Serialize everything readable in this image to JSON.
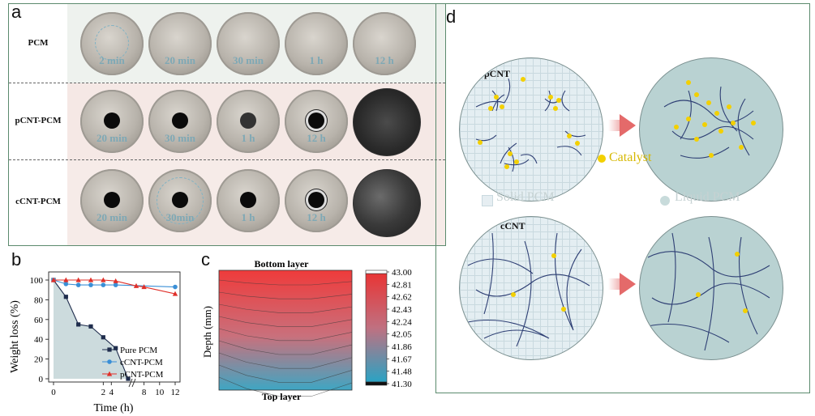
{
  "panel_labels": {
    "a": "a",
    "b": "b",
    "c": "c",
    "d": "d"
  },
  "panel_a": {
    "rows": [
      {
        "label": "PCM",
        "times": [
          "2 min",
          "20 min",
          "30 min",
          "1 h",
          "12 h"
        ]
      },
      {
        "label": "pCNT-PCM",
        "times": [
          "20 min",
          "30 min",
          "1 h",
          "12 h"
        ]
      },
      {
        "label": "cCNT-PCM",
        "times": [
          "20 min",
          "30min",
          "1 h",
          "12 h"
        ]
      }
    ]
  },
  "panel_d": {
    "pcnt_label": "pCNT",
    "ccnt_label": "cCNT",
    "catalyst_label": "Catalyst",
    "solid_label": "Solid PCM",
    "liquid_label": "Liquid PCM"
  },
  "chart_data": [
    {
      "type": "line",
      "xlabel": "Time (h)",
      "ylabel": "Weight loss (%)",
      "ylim": [
        0,
        100
      ],
      "yticks": [
        "0",
        "20",
        "40",
        "60",
        "80",
        "100"
      ],
      "xticks": [
        "0",
        "2",
        "4",
        "8",
        "10",
        "12"
      ],
      "axis_break": "between 2.5 h and 8 h",
      "legend_position": "bottom-right",
      "series": [
        {
          "name": "Pure PCM",
          "color": "#1f2d4d",
          "marker": "square",
          "x": [
            0,
            0.5,
            1,
            1.5,
            2,
            2.5,
            3
          ],
          "y": [
            100,
            83,
            55,
            53,
            42,
            31,
            0
          ]
        },
        {
          "name": "cCNT-PCM",
          "color": "#3a8fd6",
          "marker": "circle",
          "x": [
            0,
            0.5,
            1,
            1.5,
            2,
            2.5,
            12
          ],
          "y": [
            100,
            96,
            95,
            95,
            95,
            95,
            93
          ]
        },
        {
          "name": "pCNT-PCM",
          "color": "#e0302a",
          "marker": "triangle",
          "x": [
            0,
            0.5,
            1,
            1.5,
            2,
            2.5,
            7,
            8,
            12
          ],
          "y": [
            100,
            100,
            100,
            100,
            100,
            99,
            94,
            93,
            86
          ]
        }
      ]
    },
    {
      "type": "heatmap",
      "title_top": "Bottom layer",
      "title_bottom": "Top layer",
      "ylabel": "Depth (mm)",
      "colorbar_ticks": [
        "43.00",
        "42.81",
        "42.62",
        "42.43",
        "42.24",
        "42.05",
        "41.86",
        "41.67",
        "41.48",
        "41.30"
      ],
      "colorbar_range": [
        41.3,
        43.0
      ],
      "colormap": [
        "#2aa3c4",
        "#e83535"
      ]
    }
  ]
}
